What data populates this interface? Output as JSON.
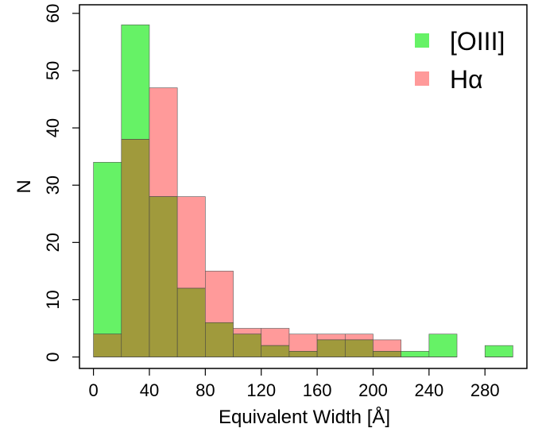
{
  "chart_data": {
    "type": "bar",
    "xlabel": "Equivalent Width [Å]",
    "ylabel": "N",
    "xlim": [
      -10,
      310
    ],
    "ylim": [
      -2,
      61.5
    ],
    "xticks": [
      0,
      40,
      80,
      120,
      160,
      200,
      240,
      280
    ],
    "yticks": [
      0,
      10,
      20,
      30,
      40,
      50,
      60
    ],
    "bin_edges": [
      0,
      20,
      40,
      60,
      80,
      100,
      120,
      140,
      160,
      180,
      200,
      220,
      240,
      260,
      280,
      300
    ],
    "series": [
      {
        "name": "[OIII]",
        "color": "#66f266",
        "values": [
          34,
          58,
          28,
          12,
          6,
          4,
          2,
          1,
          3,
          3,
          1,
          1,
          4,
          0,
          2
        ]
      },
      {
        "name": "Hα",
        "color": "#ff9a9a",
        "values": [
          4,
          38,
          47,
          28,
          15,
          5,
          5,
          4,
          4,
          4,
          3,
          0,
          0,
          0,
          0
        ]
      }
    ],
    "overlap_color": "#a09a3c",
    "grid": false,
    "legend": "top-right"
  }
}
